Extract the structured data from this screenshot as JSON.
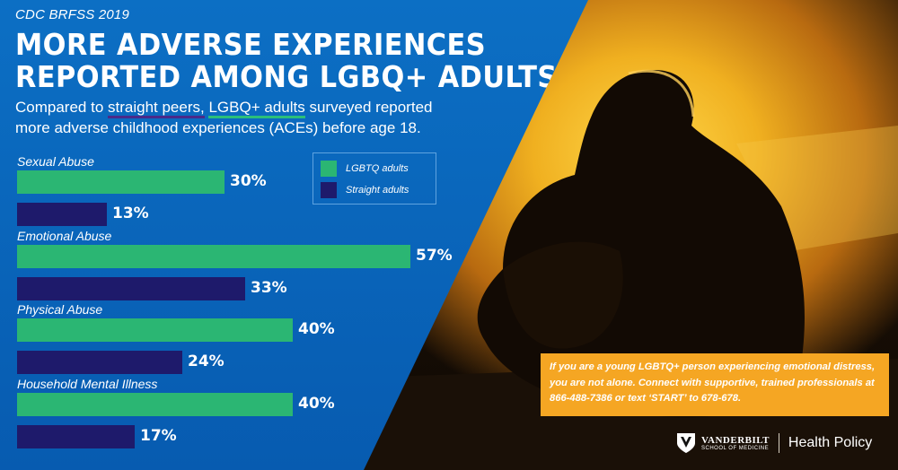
{
  "header": {
    "source": "CDC BRFSS 2019",
    "headline_line1": "MORE ADVERSE EXPERIENCES",
    "headline_line2": "REPORTED AMONG LGBQ+ ADULTS",
    "subtitle_line1_a": "Compared to ",
    "subtitle_line1_b": "straight peers,",
    "subtitle_line1_c": " ",
    "subtitle_line1_d": "LGBQ+ adults",
    "subtitle_line1_e": " surveyed reported",
    "subtitle_line2": "more adverse childhood experiences (ACEs) before age 18."
  },
  "legend": {
    "lgbtq_label": "LGBTQ adults",
    "straight_label": "Straight adults"
  },
  "colors": {
    "lgbtq": "#2bb673",
    "straight": "#1e1a6b",
    "panel": "#0a66bd",
    "callout": "#f5a623"
  },
  "chart_data": {
    "type": "bar",
    "orientation": "horizontal",
    "title": "MORE ADVERSE EXPERIENCES REPORTED AMONG LGBQ+ ADULTS",
    "categories": [
      "Sexual Abuse",
      "Emotional Abuse",
      "Physical Abuse",
      "Household Mental Illness"
    ],
    "series": [
      {
        "name": "LGBTQ adults",
        "values": [
          30,
          57,
          40,
          40
        ]
      },
      {
        "name": "Straight adults",
        "values": [
          13,
          33,
          24,
          17
        ]
      }
    ],
    "value_labels": [
      [
        "30%",
        "13%"
      ],
      [
        "57%",
        "33%"
      ],
      [
        "40%",
        "24%"
      ],
      [
        "40%",
        "17%"
      ]
    ],
    "unit": "%",
    "xlim": [
      0,
      60
    ],
    "legend_position": "top-right"
  },
  "callout": {
    "text": "If you are a young LGBTQ+ person experiencing emotional distress, you are not alone. Connect with supportive, trained professionals at 866-488-7386 or text ‘START’ to 678-678."
  },
  "logo": {
    "name": "VANDERBILT",
    "school": "SCHOOL OF MEDICINE",
    "division": "Health Policy"
  }
}
